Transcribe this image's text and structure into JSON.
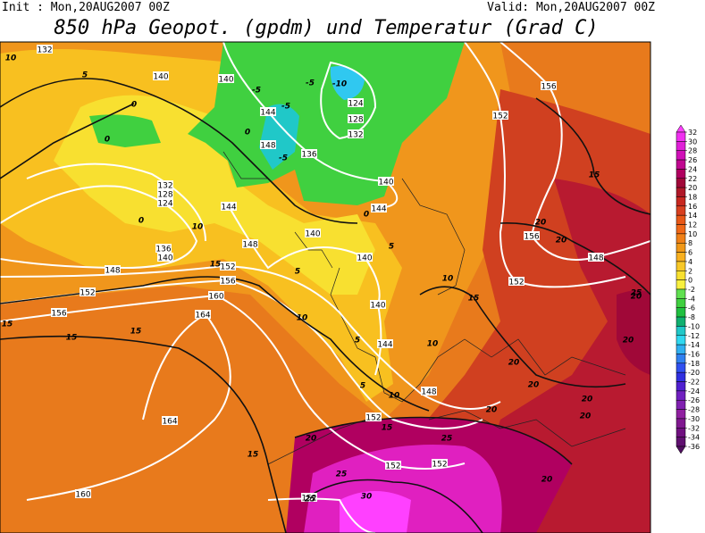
{
  "header": {
    "init": "Init : Mon,20AUG2007 00Z",
    "valid": "Valid: Mon,20AUG2007 00Z",
    "title": "850 hPa Geopot. (gpdm) und Temperatur (Grad C)"
  },
  "colorbar": {
    "ticks": [
      32,
      30,
      28,
      26,
      24,
      22,
      20,
      18,
      16,
      14,
      12,
      10,
      8,
      6,
      4,
      2,
      0,
      -2,
      -4,
      -6,
      -8,
      -10,
      -12,
      -14,
      -16,
      -18,
      -20,
      -22,
      -24,
      -26,
      -28,
      -30,
      -32,
      -34,
      -36
    ],
    "colors": [
      "#ff40ff",
      "#f030f0",
      "#e020d8",
      "#d010b8",
      "#c00890",
      "#b00060",
      "#a00838",
      "#b01828",
      "#c82820",
      "#d84020",
      "#e85818",
      "#f06818",
      "#f08018",
      "#f09818",
      "#f8b020",
      "#f8c828",
      "#f8e030",
      "#f8f040",
      "#60e050",
      "#40d040",
      "#20c040",
      "#10b070",
      "#20c8c8",
      "#30d8f0",
      "#30b0f0",
      "#3080f0",
      "#3050f0",
      "#3030e0",
      "#5020d0",
      "#7020c0",
      "#8020b0",
      "#9020a0",
      "#801890",
      "#701080",
      "#601070",
      "#501060"
    ]
  },
  "geopotential_labels": [
    "132",
    "140",
    "140",
    "144",
    "148",
    "136",
    "124",
    "128",
    "132",
    "132",
    "128",
    "124",
    "136",
    "140",
    "152",
    "156",
    "160",
    "164",
    "148",
    "152",
    "156",
    "144",
    "148",
    "140",
    "140",
    "140",
    "144",
    "148",
    "152",
    "152",
    "152",
    "152",
    "160",
    "164",
    "140",
    "144",
    "156",
    "152",
    "156",
    "152",
    "148"
  ],
  "temperature_labels": [
    "10",
    "5",
    "0",
    "0",
    "-5",
    "-5",
    "-5",
    "-10",
    "0",
    "-5",
    "0",
    "0",
    "10",
    "15",
    "5",
    "10",
    "5",
    "5",
    "5",
    "10",
    "10",
    "10",
    "15",
    "15",
    "15",
    "15",
    "20",
    "20",
    "15",
    "25",
    "20",
    "20",
    "20",
    "20",
    "20",
    "20",
    "20",
    "25",
    "25",
    "30",
    "25",
    "15",
    "20",
    "15",
    "20"
  ]
}
